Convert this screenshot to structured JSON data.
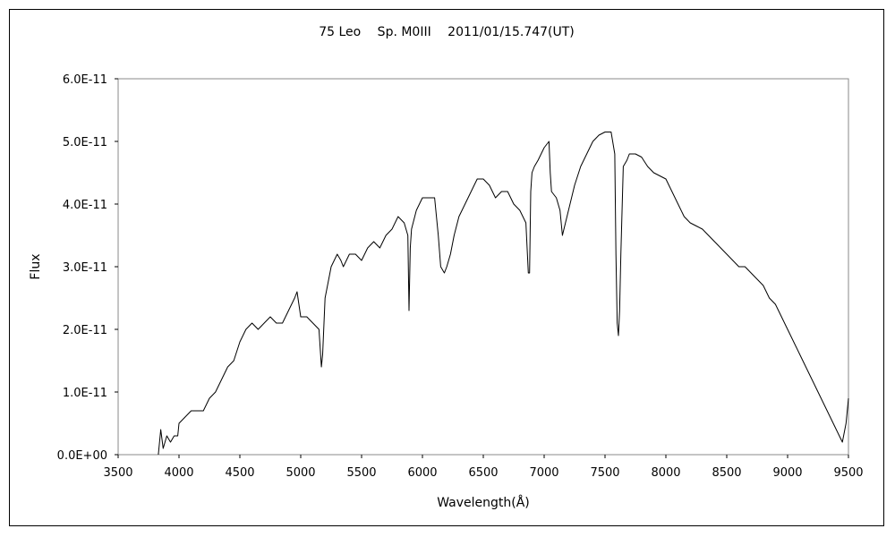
{
  "chart_data": {
    "type": "line",
    "title": "75 Leo　 Sp. M0III　 2011/01/15.747(UT)",
    "xlabel": "Wavelength(Å)",
    "ylabel": "Flux",
    "xlim": [
      3500,
      9500
    ],
    "ylim": [
      0,
      6e-11
    ],
    "x_ticks": [
      "3500",
      "4000",
      "4500",
      "5000",
      "5500",
      "6000",
      "6500",
      "7000",
      "7500",
      "8000",
      "8500",
      "9000",
      "9500"
    ],
    "y_ticks": [
      "0.0E+00",
      "1.0E-11",
      "2.0E-11",
      "3.0E-11",
      "4.0E-11",
      "5.0E-11",
      "6.0E-11"
    ],
    "grid": false,
    "legend": "none",
    "line_color": "#000000",
    "series": [
      {
        "x": [
          3830,
          3850,
          3870,
          3900,
          3930,
          3960,
          3990,
          4000,
          4050,
          4100,
          4150,
          4200,
          4250,
          4300,
          4350,
          4400,
          4450,
          4500,
          4550,
          4600,
          4650,
          4700,
          4750,
          4800,
          4850,
          4900,
          4950,
          4970,
          5000,
          5050,
          5100,
          5150,
          5170,
          5180,
          5200,
          5230,
          5250,
          5300,
          5330,
          5350,
          5400,
          5450,
          5500,
          5550,
          5600,
          5650,
          5700,
          5750,
          5800,
          5850,
          5880,
          5890,
          5900,
          5910,
          5950,
          6000,
          6050,
          6100,
          6130,
          6150,
          6180,
          6200,
          6230,
          6260,
          6300,
          6350,
          6400,
          6450,
          6500,
          6550,
          6600,
          6650,
          6700,
          6750,
          6800,
          6850,
          6870,
          6880,
          6890,
          6900,
          6920,
          6950,
          7000,
          7040,
          7050,
          7060,
          7100,
          7130,
          7150,
          7200,
          7250,
          7300,
          7350,
          7400,
          7450,
          7500,
          7550,
          7580,
          7590,
          7600,
          7610,
          7620,
          7630,
          7650,
          7680,
          7700,
          7750,
          7800,
          7850,
          7900,
          7950,
          8000,
          8050,
          8100,
          8150,
          8200,
          8250,
          8300,
          8350,
          8400,
          8450,
          8500,
          8550,
          8600,
          8650,
          8700,
          8750,
          8800,
          8850,
          8900,
          8950,
          9000,
          9050,
          9100,
          9150,
          9200,
          9250,
          9300,
          9350,
          9400,
          9450,
          9480,
          9500
        ],
        "y": [
          0.0,
          0.4,
          0.1,
          0.3,
          0.2,
          0.3,
          0.3,
          0.5,
          0.6,
          0.7,
          0.7,
          0.7,
          0.9,
          1.0,
          1.2,
          1.4,
          1.5,
          1.8,
          2.0,
          2.1,
          2.0,
          2.1,
          2.2,
          2.1,
          2.1,
          2.3,
          2.5,
          2.6,
          2.2,
          2.2,
          2.1,
          2.0,
          1.4,
          1.6,
          2.5,
          2.8,
          3.0,
          3.2,
          3.1,
          3.0,
          3.2,
          3.2,
          3.1,
          3.3,
          3.4,
          3.3,
          3.5,
          3.6,
          3.8,
          3.7,
          3.5,
          2.3,
          3.3,
          3.6,
          3.9,
          4.1,
          4.1,
          4.1,
          3.5,
          3.0,
          2.9,
          3.0,
          3.2,
          3.5,
          3.8,
          4.0,
          4.2,
          4.4,
          4.4,
          4.3,
          4.1,
          4.2,
          4.2,
          4.0,
          3.9,
          3.7,
          2.9,
          2.9,
          4.2,
          4.5,
          4.6,
          4.7,
          4.9,
          5.0,
          4.5,
          4.2,
          4.1,
          3.9,
          3.5,
          3.9,
          4.3,
          4.6,
          4.8,
          5.0,
          5.1,
          5.15,
          5.15,
          4.8,
          3.2,
          2.1,
          1.9,
          2.3,
          3.2,
          4.6,
          4.7,
          4.8,
          4.8,
          4.75,
          4.6,
          4.5,
          4.45,
          4.4,
          4.2,
          4.0,
          3.8,
          3.7,
          3.65,
          3.6,
          3.5,
          3.4,
          3.3,
          3.2,
          3.1,
          3.0,
          3.0,
          2.9,
          2.8,
          2.7,
          2.5,
          2.4,
          2.2,
          2.0,
          1.8,
          1.6,
          1.4,
          1.2,
          1.0,
          0.8,
          0.6,
          0.4,
          0.2,
          0.5,
          0.9
        ]
      }
    ]
  }
}
